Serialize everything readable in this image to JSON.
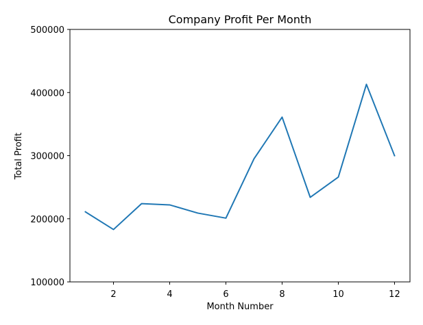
{
  "chart_data": {
    "type": "line",
    "title": "Company Profit Per Month",
    "xlabel": "Month Number",
    "ylabel": "Total Profit",
    "x": [
      1,
      2,
      3,
      4,
      5,
      6,
      7,
      8,
      9,
      10,
      11,
      12
    ],
    "series": [
      {
        "values": [
          211000,
          183000,
          224000,
          222000,
          209000,
          201000,
          295000,
          361000,
          234000,
          266000,
          413000,
          300000
        ],
        "color": "#1f77b4"
      }
    ],
    "xlim": [
      0.45,
      12.55
    ],
    "ylim": [
      100000,
      500000
    ],
    "xticks": [
      2,
      4,
      6,
      8,
      10,
      12
    ],
    "xtick_labels": [
      "2",
      "4",
      "6",
      "8",
      "10",
      "12"
    ],
    "yticks": [
      100000,
      200000,
      300000,
      400000,
      500000
    ],
    "ytick_labels": [
      "100000",
      "200000",
      "300000",
      "400000",
      "500000"
    ],
    "grid": false,
    "legend": false
  }
}
